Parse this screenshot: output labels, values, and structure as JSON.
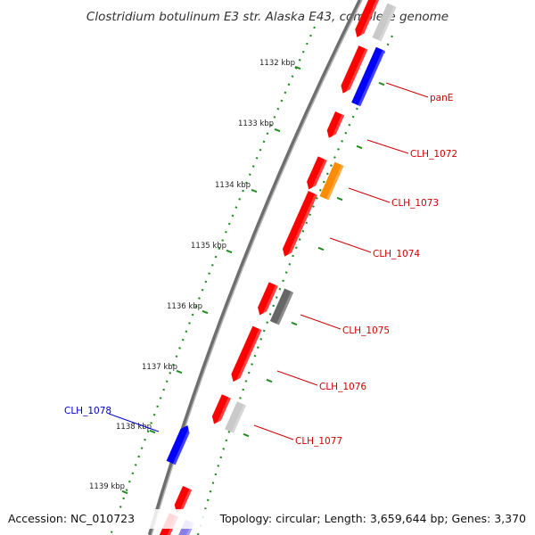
{
  "title": "Clostridium botulinum E3 str. Alaska E43, complete genome",
  "footer": {
    "accession": "Accession: NC_010723",
    "summary": "Topology: circular; Length: 3,659,644 bp; Genes: 3,370"
  },
  "scale": {
    "labels": [
      "1132 kbp",
      "1133 kbp",
      "1134 kbp",
      "1135 kbp",
      "1136 kbp",
      "1137 kbp",
      "1138 kbp",
      "1139 kbp"
    ]
  },
  "features": [
    {
      "track": "forward",
      "color": "#ff0000"
    },
    {
      "track": "reverse",
      "color": "#c9c9c9"
    },
    {
      "track": "forward",
      "color": "#ff0000"
    },
    {
      "track": "reverse",
      "color": "#0000ff",
      "label": "panE"
    },
    {
      "track": "forward",
      "color": "#ff0000"
    },
    {
      "track": "forward",
      "color": "#ff0000"
    },
    {
      "track": "reverse",
      "color": "#ff8c00",
      "label": "CLH_1073"
    },
    {
      "track": "forward",
      "color": "#ff0000",
      "label": "CLH_1074"
    },
    {
      "track": "forward",
      "color": "#ff0000"
    },
    {
      "track": "reverse",
      "color": "#666666",
      "label": "CLH_1075"
    },
    {
      "track": "forward",
      "color": "#ff0000",
      "label": "CLH_1076"
    },
    {
      "track": "forward",
      "color": "#ff0000"
    },
    {
      "track": "reverse",
      "color": "#c9c9c9",
      "label": "CLH_1077"
    },
    {
      "track": "outer",
      "color": "#0000ff",
      "label": "CLH_1078"
    },
    {
      "track": "forward",
      "color": "#ff0000"
    },
    {
      "track": "forward",
      "color": "#ff0000"
    },
    {
      "track": "reverse",
      "color": "#8a7fe8"
    }
  ],
  "extra_labels": [
    {
      "text": "CLH_1072",
      "color": "#cc0000"
    }
  ],
  "colors": {
    "backbone": "#888888",
    "ticks": "#228b22",
    "label_red": "#cc0000",
    "label_blue": "#0000cc"
  }
}
